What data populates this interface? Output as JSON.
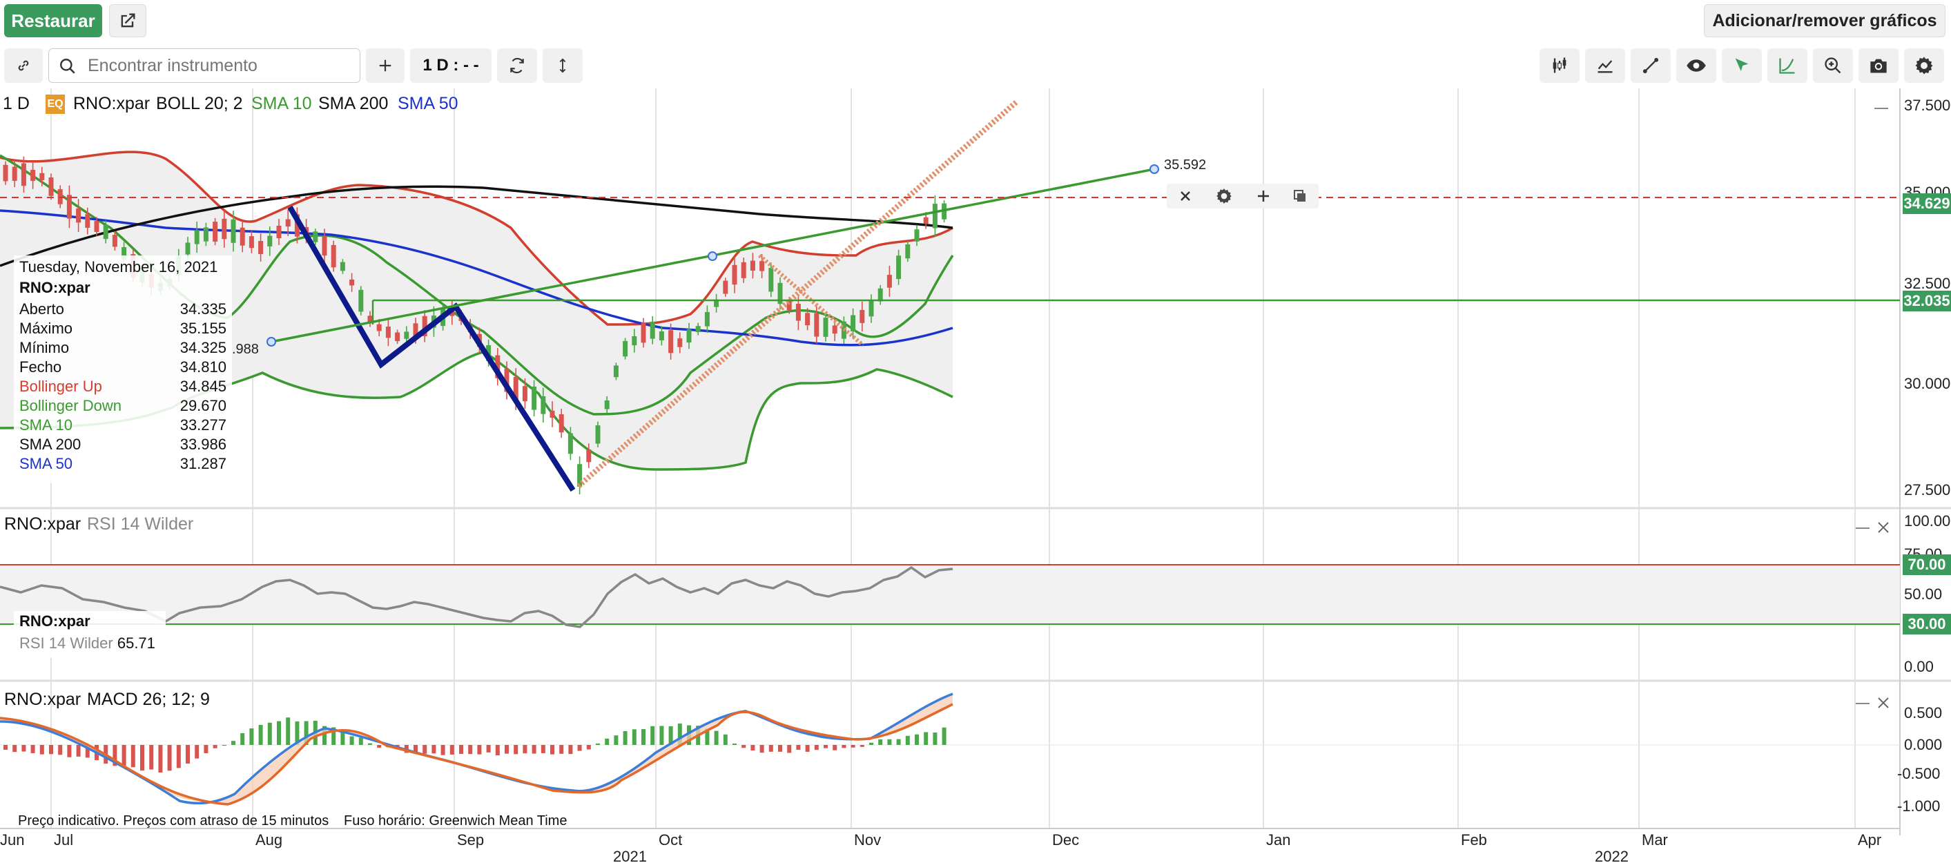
{
  "header": {
    "restore_label": "Restaurar",
    "add_remove_label": "Adicionar/remover gráficos"
  },
  "toolbar": {
    "search_placeholder": "Encontrar instrumento",
    "interval_label": "1 D : - -"
  },
  "main_legend": {
    "interval": "1 D",
    "eq_badge": "EQ",
    "instrument": "RNO:xpar",
    "boll": "BOLL 20; 2",
    "sma10": "SMA 10",
    "sma200": "SMA 200",
    "sma50": "SMA 50"
  },
  "colors": {
    "boll_up": "#d23f2f",
    "boll_down": "#3a9a2f",
    "sma10": "#3a9a2f",
    "sma200": "#111111",
    "sma50": "#1a33cc",
    "accent_green": "#3a9b5c",
    "candle_up": "#4aa84a",
    "candle_down": "#d9534f"
  },
  "tooltip": {
    "date": "Tuesday, November 16, 2021",
    "instrument": "RNO:xpar",
    "rows": [
      {
        "label": "Aberto",
        "value": "34.335"
      },
      {
        "label": "Máximo",
        "value": "35.155"
      },
      {
        "label": "Mínimo",
        "value": "34.325"
      },
      {
        "label": "Fecho",
        "value": "34.810"
      },
      {
        "label": "Bollinger Up",
        "value": "34.845"
      },
      {
        "label": "Bollinger Down",
        "value": "29.670"
      },
      {
        "label": "SMA 10",
        "value": "33.277"
      },
      {
        "label": "SMA 200",
        "value": "33.986"
      },
      {
        "label": "SMA 50",
        "value": "31.287"
      }
    ]
  },
  "price_axis": [
    "37.500",
    "32.500",
    "30.000",
    "27.500"
  ],
  "price_axis_hidden": "35.000",
  "price_tags": {
    "last": "34.629",
    "hline": "32.035"
  },
  "trendline": {
    "start_label": ".988",
    "end_label": "35.592"
  },
  "rsi_panel": {
    "instrument": "RNO:xpar",
    "title": "RSI 14 Wilder",
    "tooltip_instrument": "RNO:xpar",
    "tooltip_label": "RSI 14 Wilder",
    "tooltip_value": "65.71",
    "axis": [
      "100.00",
      "75.00",
      "50.00",
      "0.00"
    ],
    "tag_high": "70.00",
    "tag_low": "30.00"
  },
  "macd_panel": {
    "instrument": "RNO:xpar",
    "title": "MACD 26; 12; 9",
    "axis": [
      "0.500",
      "0.000",
      "-0.500",
      "-1.000"
    ]
  },
  "footer": {
    "note": "Preço indicativo. Preços com atraso de 15 minutos",
    "timezone": "Fuso horário: Greenwich Mean Time"
  },
  "time_axis": {
    "months": [
      "Jun",
      "Jul",
      "Aug",
      "Sep",
      "Oct",
      "Nov",
      "Dec",
      "Jan",
      "Feb",
      "Mar",
      "Apr"
    ],
    "years": [
      "2021",
      "2022"
    ]
  },
  "icons": [
    "link-icon",
    "search-icon",
    "plus-icon",
    "refresh-icon",
    "vertical-arrows-icon",
    "external-link-icon",
    "candles-icon",
    "indicators-icon",
    "draw-line-icon",
    "eye-icon",
    "cursor-icon",
    "curve-icon",
    "zoom-icon",
    "camera-icon",
    "gear-icon"
  ]
}
